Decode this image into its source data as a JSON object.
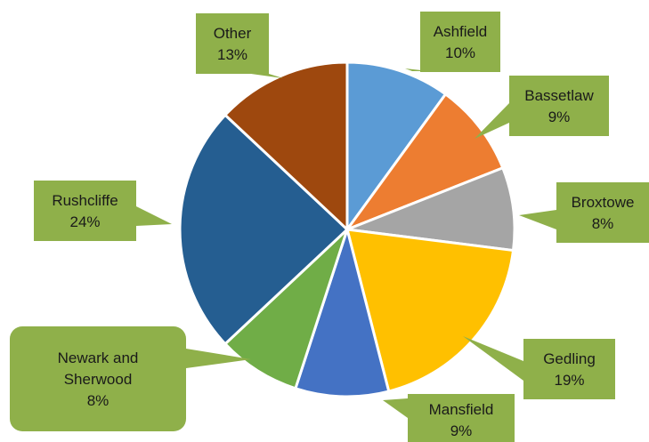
{
  "chart_data": {
    "type": "pie",
    "title": "",
    "label_bg": "#8fb04a",
    "slices": [
      {
        "name": "Ashfield",
        "value": 10,
        "pct_label": "10%",
        "color": "#5b9bd5"
      },
      {
        "name": "Bassetlaw",
        "value": 9,
        "pct_label": "9%",
        "color": "#ed7d31"
      },
      {
        "name": "Broxtowe",
        "value": 8,
        "pct_label": "8%",
        "color": "#a5a5a5"
      },
      {
        "name": "Gedling",
        "value": 19,
        "pct_label": "19%",
        "color": "#ffc000"
      },
      {
        "name": "Mansfield",
        "value": 9,
        "pct_label": "9%",
        "color": "#4472c4"
      },
      {
        "name": "Newark and Sherwood",
        "value": 8,
        "pct_label": "8%",
        "color": "#70ad47"
      },
      {
        "name": "Rushcliffe",
        "value": 24,
        "pct_label": "24%",
        "color": "#255e91"
      },
      {
        "name": "Other",
        "value": 13,
        "pct_label": "13%",
        "color": "#9e480e"
      }
    ]
  }
}
